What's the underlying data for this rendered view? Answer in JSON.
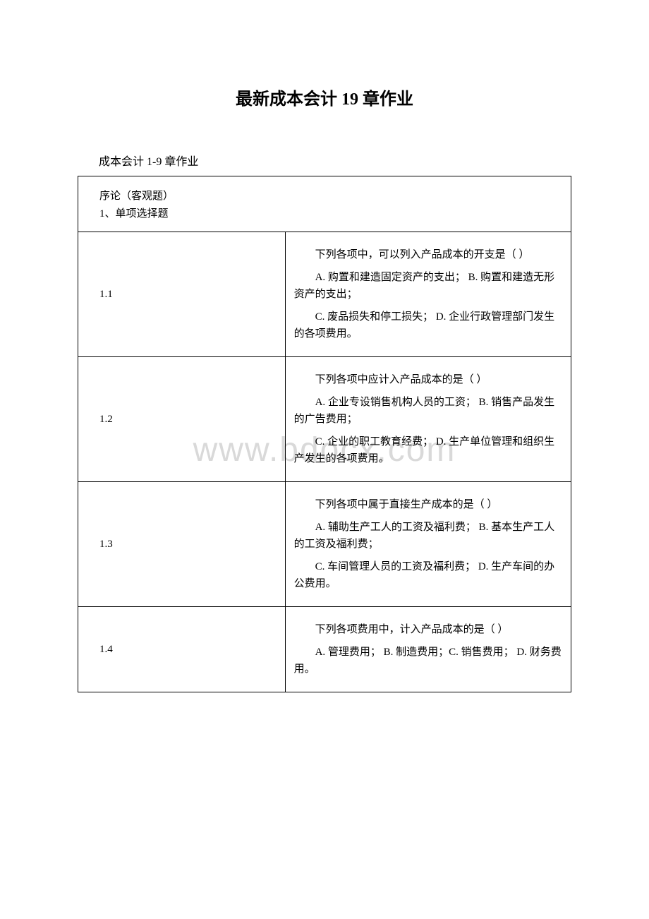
{
  "title": "最新成本会计 19 章作业",
  "subtitle": "成本会计 1-9 章作业",
  "watermark": "www.bdocx.com",
  "table": {
    "header": {
      "line1": "序论（客观题）",
      "line2": "1、单项选择题"
    },
    "rows": [
      {
        "num": "1.1",
        "q": "下列各项中，可以列入产品成本的开支是（ ）",
        "opts1": "A. 购置和建造固定资产的支出；  B. 购置和建造无形资产的支出；",
        "opts2": "C. 废品损失和停工损失； D. 企业行政管理部门发生的各项费用。"
      },
      {
        "num": "1.2",
        "q": "下列各项中应计入产品成本的是（ ）",
        "opts1": "A. 企业专设销售机构人员的工资； B. 销售产品发生的广告费用；",
        "opts2": "C. 企业的职工教育经费； D. 生产单位管理和组织生产发生的各项费用。"
      },
      {
        "num": "1.3",
        "q": "下列各项中属于直接生产成本的是（ ）",
        "opts1": "A. 辅助生产工人的工资及福利费； B. 基本生产工人的工资及福利费；",
        "opts2": "C. 车间管理人员的工资及福利费； D. 生产车间的办公费用。"
      },
      {
        "num": "1.4",
        "q": "下列各项费用中，计入产品成本的是（ ）",
        "opts1": "A. 管理费用； B. 制造费用；C. 销售费用； D. 财务费用。",
        "opts2": ""
      }
    ]
  }
}
